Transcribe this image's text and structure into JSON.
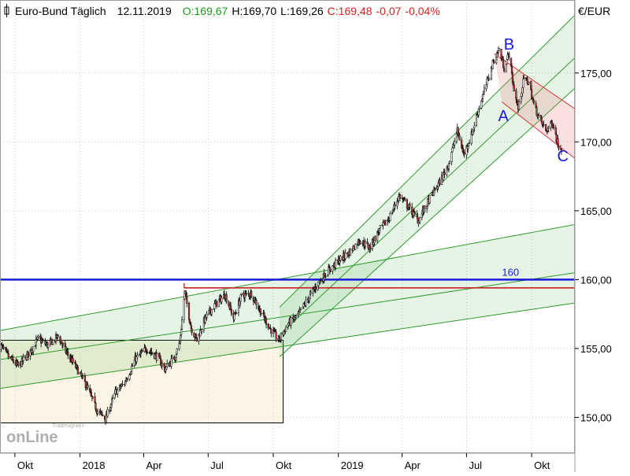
{
  "header": {
    "instrument": "Euro-Bund Täglich",
    "date": "12.11.2019",
    "open": "O:169,67",
    "high": "H:169,70",
    "low": "L:169,26",
    "close": "C:169,48",
    "change": "-0,07",
    "change_pct": "-0,04%"
  },
  "watermark": {
    "small": "Tradesignal®",
    "large": "onLine"
  },
  "chart_data": {
    "type": "line",
    "ylabel": "€/EUR",
    "ylim": [
      147.4,
      180.3
    ],
    "y_ticks": [
      150,
      155,
      160,
      165,
      170,
      175
    ],
    "y_tick_labels": [
      "150,00",
      "155,00",
      "160,00",
      "165,00",
      "170,00",
      "175,00"
    ],
    "x_ticks": [
      {
        "date": "2017-10-01",
        "label": "Okt"
      },
      {
        "date": "2018-01-01",
        "label": "2018"
      },
      {
        "date": "2018-04-01",
        "label": "Apr"
      },
      {
        "date": "2018-07-01",
        "label": "Jul"
      },
      {
        "date": "2018-10-01",
        "label": "Okt"
      },
      {
        "date": "2019-01-01",
        "label": "2019"
      },
      {
        "date": "2019-04-01",
        "label": "Apr"
      },
      {
        "date": "2019-07-01",
        "label": "Jul"
      },
      {
        "date": "2019-10-01",
        "label": "Okt"
      }
    ],
    "x_range": [
      "2017-09-10",
      "2019-12-01"
    ],
    "price_path": [
      [
        "2017-09-10",
        155.3
      ],
      [
        "2017-09-22",
        154.4
      ],
      [
        "2017-10-06",
        153.7
      ],
      [
        "2017-10-20",
        154.6
      ],
      [
        "2017-11-03",
        155.7
      ],
      [
        "2017-11-17",
        155.2
      ],
      [
        "2017-12-01",
        155.9
      ],
      [
        "2017-12-12",
        154.8
      ],
      [
        "2017-12-28",
        153.5
      ],
      [
        "2018-01-10",
        152.3
      ],
      [
        "2018-01-25",
        150.5
      ],
      [
        "2018-02-06",
        149.9
      ],
      [
        "2018-02-20",
        151.8
      ],
      [
        "2018-03-05",
        152.5
      ],
      [
        "2018-03-20",
        154.2
      ],
      [
        "2018-04-05",
        155.0
      ],
      [
        "2018-04-20",
        154.4
      ],
      [
        "2018-05-01",
        153.5
      ],
      [
        "2018-05-15",
        154.4
      ],
      [
        "2018-05-22",
        155.5
      ],
      [
        "2018-05-29",
        159.1
      ],
      [
        "2018-06-07",
        156.5
      ],
      [
        "2018-06-15",
        155.6
      ],
      [
        "2018-06-27",
        157.2
      ],
      [
        "2018-07-11",
        158.2
      ],
      [
        "2018-07-25",
        158.9
      ],
      [
        "2018-08-06",
        157.2
      ],
      [
        "2018-08-17",
        158.8
      ],
      [
        "2018-08-31",
        159.0
      ],
      [
        "2018-09-14",
        157.6
      ],
      [
        "2018-09-27",
        156.4
      ],
      [
        "2018-10-09",
        155.6
      ],
      [
        "2018-10-22",
        156.8
      ],
      [
        "2018-11-05",
        157.4
      ],
      [
        "2018-11-19",
        158.6
      ],
      [
        "2018-12-03",
        159.7
      ],
      [
        "2018-12-17",
        160.6
      ],
      [
        "2019-01-02",
        161.4
      ],
      [
        "2019-01-17",
        162.0
      ],
      [
        "2019-01-31",
        162.9
      ],
      [
        "2019-02-14",
        162.3
      ],
      [
        "2019-02-28",
        163.6
      ],
      [
        "2019-03-13",
        164.4
      ],
      [
        "2019-03-28",
        166.1
      ],
      [
        "2019-04-11",
        165.2
      ],
      [
        "2019-04-24",
        164.3
      ],
      [
        "2019-05-08",
        165.7
      ],
      [
        "2019-05-22",
        166.9
      ],
      [
        "2019-06-05",
        168.3
      ],
      [
        "2019-06-18",
        170.8
      ],
      [
        "2019-06-27",
        169.1
      ],
      [
        "2019-07-08",
        170.5
      ],
      [
        "2019-07-18",
        172.4
      ],
      [
        "2019-07-31",
        174.5
      ],
      [
        "2019-08-09",
        176.0
      ],
      [
        "2019-08-16",
        176.7
      ],
      [
        "2019-08-23",
        175.4
      ],
      [
        "2019-08-30",
        176.4
      ],
      [
        "2019-09-05",
        174.1
      ],
      [
        "2019-09-12",
        172.4
      ],
      [
        "2019-09-20",
        174.6
      ],
      [
        "2019-09-27",
        174.3
      ],
      [
        "2019-10-04",
        172.7
      ],
      [
        "2019-10-11",
        171.8
      ],
      [
        "2019-10-21",
        170.8
      ],
      [
        "2019-10-31",
        171.4
      ],
      [
        "2019-11-07",
        169.8
      ],
      [
        "2019-11-12",
        169.5
      ]
    ],
    "channels": [
      {
        "color": "#2f9a2f",
        "fill": "rgba(60,170,60,0.13)",
        "top": [
          [
            "2017-09-10",
            156.3
          ],
          [
            "2019-12-01",
            164.0
          ]
        ],
        "mid": [
          [
            "2017-09-10",
            154.2
          ],
          [
            "2019-12-01",
            160.5
          ]
        ],
        "bottom": [
          [
            "2017-09-10",
            152.1
          ],
          [
            "2019-12-01",
            158.3
          ]
        ]
      },
      {
        "color": "#2f9a2f",
        "fill": "rgba(60,170,60,0.13)",
        "top": [
          [
            "2018-10-10",
            158.0
          ],
          [
            "2019-12-01",
            179.2
          ]
        ],
        "mid": [
          [
            "2018-10-10",
            156.0
          ],
          [
            "2019-12-01",
            176.1
          ]
        ],
        "bottom": [
          [
            "2018-10-10",
            154.4
          ],
          [
            "2019-12-01",
            173.9
          ]
        ]
      }
    ],
    "correction_channel": {
      "color": "#d43a3a",
      "fill": "rgba(230,120,120,0.22)",
      "top": [
        [
          "2019-08-09",
          176.4
        ],
        [
          "2019-12-01",
          172.4
        ]
      ],
      "bottom": [
        [
          "2019-08-20",
          172.9
        ],
        [
          "2019-12-01",
          168.8
        ]
      ]
    },
    "range_box": {
      "x": [
        "2017-09-10",
        "2018-10-15"
      ],
      "y": [
        149.6,
        155.6
      ],
      "fill": "rgba(245,232,195,0.45)"
    },
    "horizontal_lines": [
      {
        "y": 160,
        "color": "#1a1adc",
        "label": "160",
        "label_date": "2019-08-20"
      },
      {
        "y": 159.4,
        "x_start": "2018-05-28",
        "color": "#c83232"
      }
    ],
    "wave_labels": [
      {
        "text": "A",
        "date": "2019-08-22",
        "y": 171.5
      },
      {
        "text": "B",
        "date": "2019-08-30",
        "y": 176.7
      },
      {
        "text": "C",
        "date": "2019-11-14",
        "y": 168.6
      }
    ],
    "colors": {
      "up": "#ffffff",
      "down": "#d23c3c",
      "wick": "#000000",
      "grid": "#c8c8c8"
    }
  }
}
